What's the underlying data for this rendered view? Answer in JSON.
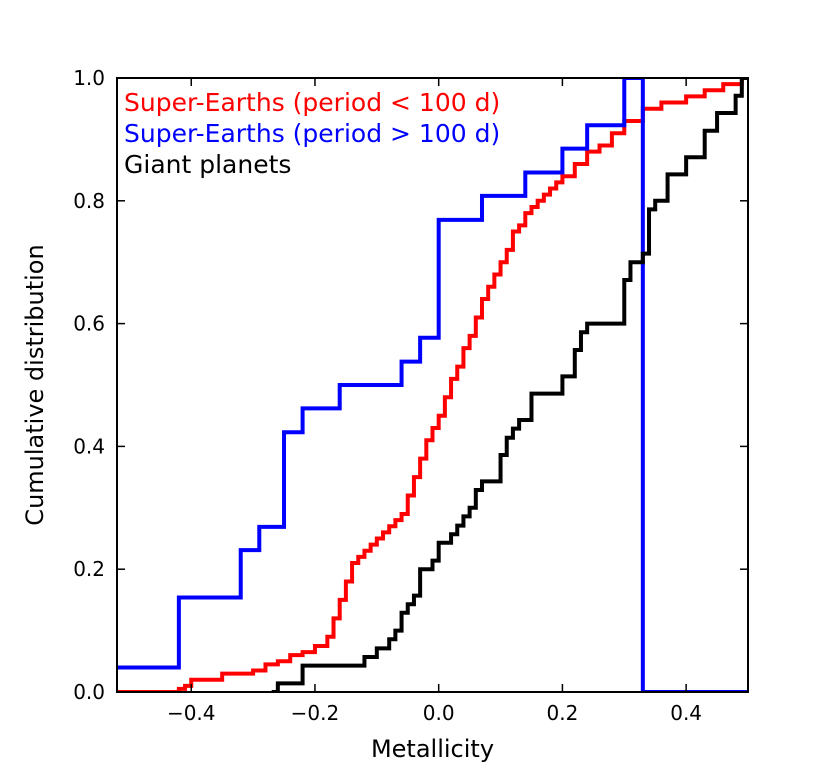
{
  "chart_data": {
    "type": "line",
    "step": true,
    "title": "",
    "xlabel": "Metallicity",
    "ylabel": "Cumulative distribution",
    "xlim": [
      -0.52,
      0.5
    ],
    "ylim": [
      0.0,
      1.0
    ],
    "xticks": [
      -0.4,
      -0.2,
      0.0,
      0.2,
      0.4
    ],
    "xtick_labels": [
      "−0.4",
      "−0.2",
      "0.0",
      "0.2",
      "0.4"
    ],
    "yticks": [
      0.0,
      0.2,
      0.4,
      0.6,
      0.8,
      1.0
    ],
    "ytick_labels": [
      "0.0",
      "0.2",
      "0.4",
      "0.6",
      "0.8",
      "1.0"
    ],
    "grid": false,
    "legend_position": "top-left",
    "series": [
      {
        "name": "Super-Earths (period < 100 d)",
        "color": "#ff0000",
        "x": [
          -0.52,
          -0.42,
          -0.41,
          -0.4,
          -0.35,
          -0.3,
          -0.28,
          -0.26,
          -0.24,
          -0.22,
          -0.2,
          -0.18,
          -0.17,
          -0.16,
          -0.15,
          -0.14,
          -0.13,
          -0.12,
          -0.11,
          -0.1,
          -0.09,
          -0.08,
          -0.07,
          -0.06,
          -0.05,
          -0.04,
          -0.03,
          -0.02,
          -0.01,
          0.0,
          0.01,
          0.02,
          0.03,
          0.04,
          0.05,
          0.06,
          0.07,
          0.08,
          0.09,
          0.1,
          0.11,
          0.12,
          0.13,
          0.14,
          0.15,
          0.16,
          0.17,
          0.18,
          0.19,
          0.2,
          0.22,
          0.24,
          0.26,
          0.28,
          0.3,
          0.33,
          0.36,
          0.4,
          0.43,
          0.46,
          0.49
        ],
        "y": [
          0.0,
          0.005,
          0.01,
          0.02,
          0.03,
          0.035,
          0.045,
          0.05,
          0.06,
          0.065,
          0.075,
          0.09,
          0.12,
          0.15,
          0.18,
          0.21,
          0.22,
          0.23,
          0.24,
          0.25,
          0.26,
          0.27,
          0.28,
          0.29,
          0.32,
          0.35,
          0.38,
          0.41,
          0.43,
          0.45,
          0.48,
          0.51,
          0.53,
          0.56,
          0.58,
          0.61,
          0.64,
          0.66,
          0.68,
          0.7,
          0.72,
          0.75,
          0.76,
          0.78,
          0.79,
          0.8,
          0.81,
          0.82,
          0.83,
          0.84,
          0.86,
          0.88,
          0.89,
          0.91,
          0.93,
          0.95,
          0.96,
          0.97,
          0.98,
          0.99,
          1.0
        ]
      },
      {
        "name": "Super-Earths (period > 100 d)",
        "color": "#0000ff",
        "x": [
          -0.52,
          -0.42,
          -0.32,
          -0.29,
          -0.25,
          -0.22,
          -0.16,
          -0.06,
          -0.03,
          0.0,
          0.07,
          0.14,
          0.2,
          0.24,
          0.3,
          0.33,
          0.33
        ],
        "y": [
          0.04,
          0.154,
          0.231,
          0.269,
          0.423,
          0.462,
          0.5,
          0.538,
          0.577,
          0.769,
          0.808,
          0.846,
          0.885,
          0.923,
          1.0,
          1.0,
          0.0
        ]
      },
      {
        "name": "Giant planets",
        "color": "#000000",
        "x": [
          -0.27,
          -0.26,
          -0.22,
          -0.12,
          -0.1,
          -0.08,
          -0.07,
          -0.06,
          -0.05,
          -0.04,
          -0.03,
          -0.01,
          0.0,
          0.02,
          0.03,
          0.04,
          0.05,
          0.06,
          0.07,
          0.1,
          0.11,
          0.12,
          0.13,
          0.15,
          0.2,
          0.22,
          0.23,
          0.24,
          0.3,
          0.31,
          0.33,
          0.34,
          0.35,
          0.37,
          0.4,
          0.43,
          0.45,
          0.48,
          0.49
        ],
        "y": [
          0.0,
          0.014,
          0.043,
          0.057,
          0.071,
          0.086,
          0.1,
          0.129,
          0.143,
          0.157,
          0.2,
          0.214,
          0.243,
          0.257,
          0.271,
          0.286,
          0.3,
          0.329,
          0.343,
          0.386,
          0.414,
          0.429,
          0.443,
          0.486,
          0.514,
          0.557,
          0.586,
          0.6,
          0.671,
          0.7,
          0.714,
          0.786,
          0.8,
          0.843,
          0.871,
          0.914,
          0.943,
          0.971,
          1.0
        ]
      }
    ]
  }
}
